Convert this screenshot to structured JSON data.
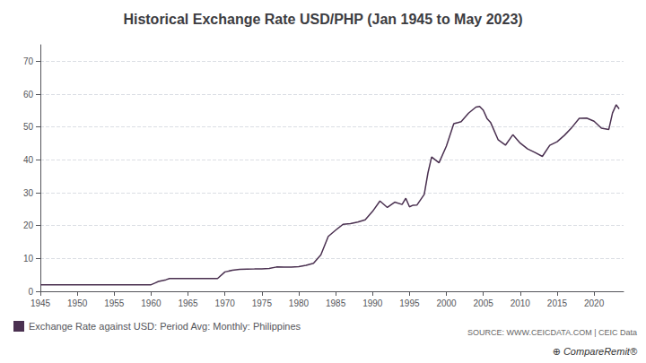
{
  "chart_data": {
    "type": "line",
    "title": "Historical Exchange Rate USD/PHP (Jan 1945 to May 2023)",
    "annotations": [
      "SOURCE: WWW.CEICDATA.COM | CEIC Data",
      "⊕ CompareRemit®"
    ],
    "x": [
      1945.0,
      1945.1,
      1945.5,
      1946.0,
      1947.0,
      1948.0,
      1949.0,
      1950.0,
      1951.0,
      1952.0,
      1953.0,
      1954.0,
      1955.0,
      1956.0,
      1957.0,
      1958.0,
      1959.0,
      1960.0,
      1960.5,
      1961.0,
      1962.0,
      1962.5,
      1963.0,
      1964.0,
      1965.0,
      1966.0,
      1967.0,
      1968.0,
      1969.0,
      1970.0,
      1971.0,
      1972.0,
      1973.0,
      1974.0,
      1975.0,
      1976.0,
      1977.0,
      1978.0,
      1979.0,
      1980.0,
      1981.0,
      1982.0,
      1983.0,
      1984.0,
      1985.0,
      1986.0,
      1987.0,
      1988.0,
      1989.0,
      1990.0,
      1991.0,
      1992.0,
      1993.0,
      1994.0,
      1994.5,
      1995.0,
      1995.5,
      1996.0,
      1997.0,
      1997.5,
      1998.0,
      1999.0,
      2000.0,
      2001.0,
      2002.0,
      2003.0,
      2004.0,
      2004.5,
      2005.0,
      2005.5,
      2006.0,
      2007.0,
      2008.0,
      2009.0,
      2010.0,
      2011.0,
      2012.0,
      2013.0,
      2014.0,
      2015.0,
      2016.0,
      2017.0,
      2018.0,
      2019.0,
      2020.0,
      2021.0,
      2022.0,
      2022.5,
      2023.0,
      2023.4
    ],
    "series": [
      {
        "name": "Exchange Rate against USD: Period Avg: Monthly: Philippines",
        "color": "#4a3050",
        "values": [
          2.0,
          2.0,
          2.0,
          2.0,
          2.0,
          2.0,
          2.0,
          2.0,
          2.0,
          2.0,
          2.0,
          2.0,
          2.0,
          2.0,
          2.0,
          2.0,
          2.0,
          2.0,
          2.5,
          3.0,
          3.5,
          3.9,
          3.9,
          3.9,
          3.9,
          3.9,
          3.9,
          3.9,
          3.9,
          5.9,
          6.4,
          6.7,
          6.75,
          6.79,
          6.84,
          6.97,
          7.4,
          7.37,
          7.38,
          7.51,
          7.9,
          8.54,
          11.11,
          16.7,
          18.61,
          20.39,
          20.57,
          21.09,
          21.74,
          24.31,
          27.48,
          25.51,
          27.12,
          26.42,
          28.3,
          25.71,
          26.21,
          26.22,
          29.47,
          36.0,
          40.89,
          39.09,
          44.19,
          50.99,
          51.6,
          54.2,
          56.04,
          56.25,
          55.09,
          52.6,
          51.31,
          46.15,
          44.47,
          47.64,
          45.1,
          43.31,
          42.23,
          41.05,
          44.4,
          45.5,
          47.49,
          49.87,
          52.66,
          52.72,
          51.76,
          49.62,
          49.25,
          54.25,
          56.75,
          55.5
        ]
      }
    ],
    "xlim": [
      1945,
      2024
    ],
    "xticks": [
      1945,
      1950,
      1955,
      1960,
      1965,
      1970,
      1975,
      1980,
      1985,
      1990,
      1995,
      2000,
      2005,
      2010,
      2015,
      2020
    ],
    "ylim": [
      0,
      75
    ],
    "yticks": [
      0,
      10,
      20,
      30,
      40,
      50,
      60,
      70
    ],
    "grid": true,
    "legend": "lower left"
  }
}
